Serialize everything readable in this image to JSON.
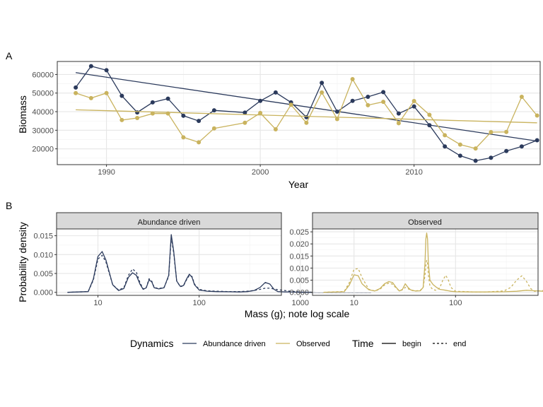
{
  "colors": {
    "abundance": "#2b3a5c",
    "observed": "#c9b35e",
    "grid_major": "#e6e6e6",
    "grid_minor": "#f2f2f2",
    "strip_fill": "#d9d9d9",
    "panel_border": "#333333"
  },
  "chart_data": [
    {
      "tag": "A",
      "type": "line",
      "xlabel": "Year",
      "ylabel": "Biomass",
      "xlim": [
        1986.8,
        2018.2
      ],
      "ylim": [
        11500,
        67000
      ],
      "x_ticks": [
        1990,
        2000,
        2010
      ],
      "x_tick_labels": [
        "1990",
        "2000",
        "2010"
      ],
      "y_ticks": [
        20000,
        30000,
        40000,
        50000,
        60000
      ],
      "y_tick_labels": [
        "20000",
        "30000",
        "40000",
        "50000",
        "60000"
      ],
      "grid": true,
      "series": [
        {
          "name": "Abundance driven",
          "color_key": "abundance",
          "x": [
            1988,
            1989,
            1990,
            1991,
            1992,
            1993,
            1994,
            1995,
            1996,
            1997,
            1999,
            2000,
            2001,
            2002,
            2003,
            2004,
            2005,
            2006,
            2007,
            2008,
            2009,
            2010,
            2011,
            2012,
            2013,
            2014,
            2015,
            2016,
            2017,
            2018
          ],
          "y": [
            53000,
            64500,
            62300,
            48500,
            39600,
            45000,
            47000,
            37800,
            35000,
            40700,
            39500,
            45800,
            50300,
            45000,
            37000,
            55500,
            40000,
            45800,
            48000,
            50500,
            39000,
            42800,
            32700,
            21300,
            16300,
            13600,
            15200,
            18800,
            21300,
            24600
          ],
          "trend": [
            61000,
            24200
          ]
        },
        {
          "name": "Observed",
          "color_key": "observed",
          "x": [
            1988,
            1989,
            1990,
            1991,
            1992,
            1993,
            1994,
            1995,
            1996,
            1997,
            1999,
            2000,
            2001,
            2002,
            2003,
            2004,
            2005,
            2006,
            2007,
            2008,
            2009,
            2010,
            2011,
            2012,
            2013,
            2014,
            2015,
            2016,
            2017,
            2018
          ],
          "y": [
            50000,
            47300,
            50000,
            35500,
            36600,
            39000,
            39000,
            26200,
            23500,
            31000,
            34000,
            39300,
            30500,
            43700,
            34000,
            50300,
            36000,
            57500,
            43500,
            45300,
            33800,
            45700,
            38300,
            27300,
            22300,
            20200,
            29000,
            29100,
            48000,
            37900
          ],
          "trend": [
            41000,
            34000
          ]
        }
      ]
    },
    {
      "tag": "B",
      "type": "line",
      "xlabel": "Mass (g); note log scale",
      "ylabel": "Probability density",
      "x_scale": "log10",
      "xlim": [
        3.9,
        650
      ],
      "x_ticks": [
        10,
        100,
        1000
      ],
      "x_tick_labels": [
        "10",
        "100",
        "1000"
      ],
      "facets": [
        {
          "title": "Abundance driven",
          "color_key": "abundance",
          "ylim": [
            -0.0008,
            0.0168
          ],
          "y_ticks": [
            0,
            0.005,
            0.01,
            0.015
          ],
          "y_tick_labels": [
            "0.000",
            "0.005",
            "0.010",
            "0.015"
          ],
          "series": [
            {
              "name": "begin",
              "x": [
                5,
                8,
                9,
                10,
                11,
                12,
                14,
                16,
                18,
                20,
                22,
                24,
                26,
                28,
                30,
                32,
                34,
                36,
                40,
                45,
                50,
                53,
                56,
                60,
                65,
                70,
                75,
                80,
                85,
                90,
                100,
                120,
                150,
                200,
                250,
                300,
                350,
                400,
                450,
                500,
                550,
                600,
                700,
                800,
                1000,
                1500,
                2000,
                3000,
                5000
              ],
              "y": [
                0,
                0.0002,
                0.0035,
                0.0095,
                0.0108,
                0.0085,
                0.002,
                0.0005,
                0.001,
                0.004,
                0.0052,
                0.0045,
                0.0022,
                0.0008,
                0.0012,
                0.0033,
                0.0028,
                0.0012,
                0.0009,
                0.0012,
                0.0045,
                0.0153,
                0.011,
                0.003,
                0.0016,
                0.0018,
                0.0035,
                0.0048,
                0.004,
                0.002,
                0.0006,
                0.0003,
                0.0002,
                0.00015,
                0.0001,
                0.0002,
                0.0005,
                0.0013,
                0.0026,
                0.0022,
                0.0008,
                0.0002,
                0.0001,
                0.0001,
                0,
                0,
                0,
                0,
                0
              ]
            },
            {
              "name": "end",
              "x": [
                5,
                8,
                9,
                10,
                11,
                12,
                14,
                16,
                18,
                20,
                22,
                24,
                26,
                28,
                30,
                32,
                34,
                36,
                40,
                45,
                50,
                53,
                56,
                60,
                65,
                70,
                75,
                80,
                85,
                90,
                100,
                120,
                150,
                200,
                250,
                300,
                350,
                400,
                450,
                500,
                550,
                600,
                700,
                800,
                1000,
                1500,
                2000,
                3000,
                5000
              ],
              "y": [
                0,
                0.0002,
                0.0032,
                0.0088,
                0.0098,
                0.008,
                0.002,
                0.0006,
                0.0012,
                0.0045,
                0.0062,
                0.0053,
                0.0026,
                0.0009,
                0.0012,
                0.0036,
                0.003,
                0.0013,
                0.001,
                0.0013,
                0.0042,
                0.0145,
                0.0105,
                0.003,
                0.0015,
                0.0017,
                0.0033,
                0.0045,
                0.0042,
                0.0022,
                0.0008,
                0.0004,
                0.0003,
                0.0002,
                0.0002,
                0.0003,
                0.0005,
                0.0008,
                0.0011,
                0.0011,
                0.0009,
                0.0007,
                0.0005,
                0.0003,
                0.0001,
                0,
                0,
                0,
                0
              ]
            }
          ]
        },
        {
          "title": "Observed",
          "color_key": "observed",
          "ylim": [
            -0.0013,
            0.0262
          ],
          "y_ticks": [
            0,
            0.005,
            0.01,
            0.015,
            0.02,
            0.025
          ],
          "y_tick_labels": [
            "0.000",
            "0.005",
            "0.010",
            "0.015",
            "0.020",
            "0.025"
          ],
          "series": [
            {
              "name": "begin",
              "x": [
                5,
                8,
                9,
                10,
                11,
                12,
                14,
                16,
                18,
                20,
                22,
                24,
                26,
                28,
                30,
                32,
                34,
                36,
                40,
                45,
                48,
                50,
                51,
                52,
                53,
                54,
                56,
                60,
                65,
                70,
                75,
                80,
                90,
                100,
                150,
                200,
                300,
                400,
                500,
                600,
                800,
                1000,
                1500,
                2000,
                3000,
                5000
              ],
              "y": [
                0,
                0.0002,
                0.003,
                0.0072,
                0.0068,
                0.0035,
                0.001,
                0.0005,
                0.0015,
                0.0035,
                0.0044,
                0.004,
                0.002,
                0.0005,
                0.0012,
                0.0035,
                0.002,
                0.001,
                0.0005,
                0.0006,
                0.002,
                0.012,
                0.022,
                0.0245,
                0.022,
                0.012,
                0.005,
                0.0032,
                0.002,
                0.0012,
                0.001,
                0.0008,
                0.0004,
                0.0002,
                0.0001,
                0.0001,
                0.0002,
                0.0004,
                0.0008,
                0.0006,
                0.0003,
                0.0001,
                0,
                0,
                0,
                0
              ]
            },
            {
              "name": "end",
              "x": [
                5,
                8,
                9,
                10,
                11,
                12,
                14,
                16,
                18,
                20,
                22,
                24,
                26,
                28,
                30,
                32,
                34,
                36,
                40,
                45,
                48,
                50,
                51,
                52,
                53,
                54,
                56,
                60,
                65,
                70,
                75,
                80,
                85,
                90,
                100,
                150,
                200,
                300,
                350,
                400,
                450,
                500,
                550,
                600,
                800,
                1000,
                1500,
                2000,
                3000,
                5000
              ],
              "y": [
                0,
                0.0003,
                0.004,
                0.0095,
                0.0098,
                0.006,
                0.0012,
                0.0005,
                0.0012,
                0.003,
                0.0038,
                0.0033,
                0.0017,
                0.0005,
                0.001,
                0.002,
                0.0015,
                0.0008,
                0.0005,
                0.0008,
                0.002,
                0.007,
                0.011,
                0.0132,
                0.012,
                0.007,
                0.0025,
                0.001,
                0.0008,
                0.0018,
                0.005,
                0.007,
                0.005,
                0.002,
                0.0004,
                0.0001,
                0.0001,
                0.0005,
                0.002,
                0.005,
                0.0068,
                0.0045,
                0.0015,
                0.0004,
                0.0008,
                0.0008,
                0.0001,
                0,
                0,
                0
              ]
            }
          ]
        }
      ]
    }
  ],
  "legend": {
    "dynamics_title": "Dynamics",
    "dynamics_items": [
      "Abundance driven",
      "Observed"
    ],
    "time_title": "Time",
    "time_items": [
      "begin",
      "end"
    ]
  }
}
